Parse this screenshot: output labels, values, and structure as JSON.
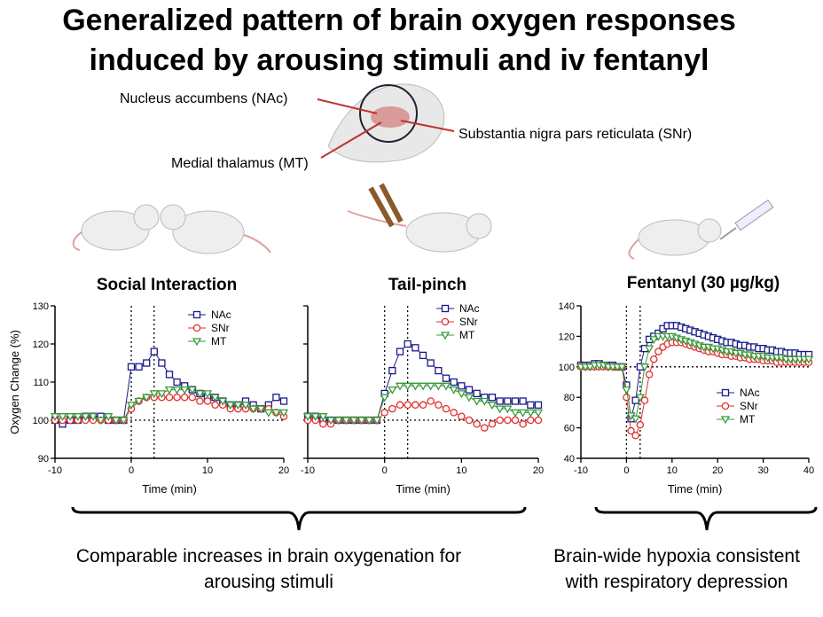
{
  "title": [
    "Generalized pattern of brain oxygen responses",
    "induced by arousing stimuli and iv fentanyl"
  ],
  "brain_labels": [
    "Nucleus accumbens (NAc)",
    "Medial thalamus (MT)",
    "Substantia nigra pars reticulata (SNr)"
  ],
  "captions": [
    [
      "Comparable increases in brain oxygenation for",
      "arousing stimuli"
    ],
    [
      "Brain-wide hypoxia consistent",
      "with respiratory depression"
    ]
  ],
  "chart_data": [
    {
      "type": "line",
      "title": "Social  Interaction",
      "xlabel": "Time (min)",
      "ylabel": "Oxygen Change (%)",
      "xlim": [
        -10,
        20
      ],
      "xticks": [
        -10,
        0,
        10,
        20
      ],
      "ylim": [
        90,
        130
      ],
      "yticks": [
        90,
        100,
        110,
        120,
        130
      ],
      "ytick_labels": true,
      "reference_lines": {
        "x": [
          0,
          3
        ],
        "y": 100
      },
      "x": [
        -10,
        -9,
        -8,
        -7,
        -6,
        -5,
        -4,
        -3,
        -2,
        -1,
        0,
        1,
        2,
        3,
        4,
        5,
        6,
        7,
        8,
        9,
        10,
        11,
        12,
        13,
        14,
        15,
        16,
        17,
        18,
        19,
        20
      ],
      "series": [
        {
          "name": "NAc",
          "color": "#1a1a8c",
          "marker": "square",
          "values": [
            100,
            99,
            100,
            100,
            101,
            101,
            101,
            100,
            100,
            100,
            114,
            114,
            115,
            118,
            115,
            112,
            110,
            109,
            108,
            107,
            106,
            106,
            105,
            104,
            104,
            105,
            104,
            103,
            104,
            106,
            105
          ]
        },
        {
          "name": "SNr",
          "color": "#e03030",
          "marker": "circle",
          "values": [
            100,
            100,
            100,
            100,
            100,
            100,
            100,
            100,
            100,
            100,
            103,
            105,
            106,
            106,
            106,
            106,
            106,
            106,
            106,
            105,
            105,
            104,
            104,
            103,
            103,
            103,
            103,
            103,
            103,
            102,
            101
          ]
        },
        {
          "name": "MT",
          "color": "#3a9a3a",
          "marker": "triangle",
          "values": [
            101,
            101,
            101,
            101,
            101,
            101,
            100,
            101,
            100,
            100,
            104,
            105,
            106,
            107,
            107,
            108,
            108,
            108,
            108,
            107,
            107,
            106,
            105,
            104,
            104,
            104,
            103,
            103,
            102,
            102,
            102
          ]
        }
      ]
    },
    {
      "type": "line",
      "title": "Tail-pinch",
      "xlabel": "Time (min)",
      "xlim": [
        -10,
        20
      ],
      "xticks": [
        -10,
        0,
        10,
        20
      ],
      "ylim": [
        90,
        130
      ],
      "yticks": [
        90,
        100,
        110,
        120,
        130
      ],
      "ytick_labels": false,
      "reference_lines": {
        "x": [
          0,
          3
        ],
        "y": 100
      },
      "x": [
        -10,
        -9,
        -8,
        -7,
        -6,
        -5,
        -4,
        -3,
        -2,
        -1,
        0,
        1,
        2,
        3,
        4,
        5,
        6,
        7,
        8,
        9,
        10,
        11,
        12,
        13,
        14,
        15,
        16,
        17,
        18,
        19,
        20
      ],
      "series": [
        {
          "name": "NAc",
          "color": "#1a1a8c",
          "marker": "square",
          "values": [
            101,
            101,
            100,
            100,
            100,
            100,
            100,
            100,
            100,
            100,
            107,
            113,
            118,
            120,
            119,
            117,
            115,
            113,
            111,
            110,
            109,
            108,
            107,
            106,
            106,
            105,
            105,
            105,
            105,
            104,
            104
          ]
        },
        {
          "name": "SNr",
          "color": "#e03030",
          "marker": "circle",
          "values": [
            100,
            100,
            99,
            99,
            100,
            100,
            100,
            100,
            100,
            100,
            102,
            103,
            104,
            104,
            104,
            104,
            105,
            104,
            103,
            102,
            101,
            100,
            99,
            98,
            99,
            100,
            100,
            100,
            99,
            100,
            100
          ]
        },
        {
          "name": "MT",
          "color": "#3a9a3a",
          "marker": "triangle",
          "values": [
            101,
            101,
            101,
            100,
            100,
            100,
            100,
            100,
            100,
            100,
            106,
            108,
            109,
            109,
            109,
            109,
            109,
            109,
            109,
            108,
            107,
            106,
            105,
            105,
            104,
            103,
            103,
            102,
            102,
            102,
            102
          ]
        }
      ]
    },
    {
      "type": "line",
      "title": "Fentanyl (30 µg/kg)",
      "xlabel": "Time (min)",
      "xlim": [
        -10,
        40
      ],
      "xticks": [
        -10,
        0,
        10,
        20,
        30,
        40
      ],
      "ylim": [
        40,
        140
      ],
      "yticks": [
        40,
        60,
        80,
        100,
        120,
        140
      ],
      "ytick_labels": true,
      "reference_lines": {
        "x": [
          0,
          3
        ],
        "y": 100
      },
      "x": [
        -10,
        -9,
        -8,
        -7,
        -6,
        -5,
        -4,
        -3,
        -2,
        -1,
        0,
        1,
        2,
        3,
        4,
        5,
        6,
        7,
        8,
        9,
        10,
        11,
        12,
        13,
        14,
        15,
        16,
        17,
        18,
        19,
        20,
        21,
        22,
        23,
        24,
        25,
        26,
        27,
        28,
        29,
        30,
        31,
        32,
        33,
        34,
        35,
        36,
        37,
        38,
        39,
        40
      ],
      "series": [
        {
          "name": "NAc",
          "color": "#1a1a8c",
          "marker": "square",
          "values": [
            101,
            101,
            101,
            102,
            102,
            101,
            101,
            101,
            100,
            100,
            88,
            66,
            78,
            100,
            112,
            118,
            120,
            122,
            125,
            127,
            127,
            127,
            126,
            125,
            124,
            123,
            122,
            121,
            120,
            119,
            118,
            117,
            116,
            116,
            115,
            114,
            114,
            113,
            113,
            112,
            112,
            111,
            111,
            110,
            110,
            109,
            109,
            109,
            108,
            108,
            108
          ]
        },
        {
          "name": "SNr",
          "color": "#e03030",
          "marker": "circle",
          "values": [
            100,
            100,
            100,
            100,
            100,
            100,
            100,
            100,
            100,
            100,
            80,
            58,
            55,
            62,
            78,
            95,
            105,
            110,
            113,
            115,
            116,
            116,
            116,
            115,
            114,
            113,
            112,
            111,
            110,
            110,
            109,
            108,
            108,
            107,
            107,
            106,
            106,
            105,
            105,
            105,
            104,
            104,
            104,
            103,
            103,
            103,
            103,
            103,
            103,
            103,
            103
          ]
        },
        {
          "name": "MT",
          "color": "#3a9a3a",
          "marker": "triangle",
          "values": [
            100,
            100,
            100,
            101,
            101,
            101,
            100,
            100,
            100,
            100,
            85,
            68,
            66,
            80,
            100,
            112,
            118,
            120,
            120,
            120,
            120,
            119,
            118,
            117,
            116,
            115,
            114,
            113,
            113,
            112,
            112,
            111,
            110,
            110,
            109,
            109,
            108,
            108,
            107,
            107,
            107,
            106,
            106,
            106,
            106,
            105,
            105,
            105,
            105,
            105,
            105
          ]
        }
      ]
    }
  ]
}
